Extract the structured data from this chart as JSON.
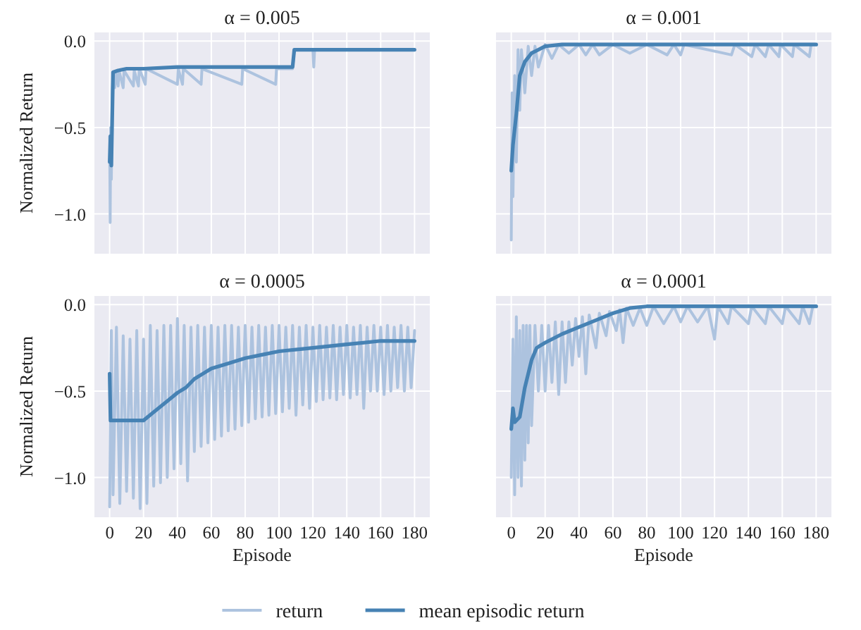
{
  "chart_data": [
    {
      "type": "line",
      "title": "α = 0.005",
      "ylabel": "Normalized Return",
      "xlim": [
        -9,
        189
      ],
      "ylim": [
        -1.23,
        0.05
      ],
      "xticks": [
        0,
        20,
        40,
        60,
        80,
        100,
        120,
        140,
        160,
        180
      ],
      "yticks": [
        {
          "value": -1,
          "label": "−1.0"
        },
        {
          "value": -0.5,
          "label": "−0.5"
        },
        {
          "value": 0,
          "label": "0.0"
        }
      ],
      "grid": true,
      "tick_labels": "y",
      "legend": "bottom",
      "series": [
        {
          "name": "return",
          "color": "#adc3df",
          "x": [
            0,
            0.3,
            0.6,
            1,
            1.5,
            2,
            3,
            3.5,
            5,
            5.5,
            8,
            8.5,
            14,
            14.5,
            17,
            17.5,
            21,
            21.5,
            40,
            40.5,
            43,
            43.5,
            54,
            54.5,
            78,
            78.5,
            98,
            98.5,
            108,
            109,
            120,
            120.5,
            121,
            180
          ],
          "values": [
            -0.55,
            -1.05,
            -0.5,
            -0.8,
            -0.3,
            -0.2,
            -0.27,
            -0.18,
            -0.26,
            -0.17,
            -0.27,
            -0.17,
            -0.26,
            -0.17,
            -0.26,
            -0.16,
            -0.25,
            -0.16,
            -0.25,
            -0.16,
            -0.25,
            -0.16,
            -0.25,
            -0.16,
            -0.25,
            -0.16,
            -0.25,
            -0.16,
            -0.16,
            -0.05,
            -0.05,
            -0.15,
            -0.05,
            -0.05
          ]
        },
        {
          "name": "mean episodic return",
          "color": "#4682b4",
          "x": [
            0,
            0.5,
            1,
            2,
            5,
            10,
            20,
            40,
            108,
            109,
            180
          ],
          "values": [
            -0.7,
            -0.55,
            -0.72,
            -0.18,
            -0.17,
            -0.16,
            -0.16,
            -0.15,
            -0.15,
            -0.05,
            -0.05
          ]
        }
      ]
    },
    {
      "type": "line",
      "title": "α = 0.001",
      "xlim": [
        -9,
        189
      ],
      "ylim": [
        -1.23,
        0.05
      ],
      "xticks": [
        0,
        20,
        40,
        60,
        80,
        100,
        120,
        140,
        160,
        180
      ],
      "yticks": [
        -1,
        -0.5,
        0
      ],
      "grid": true,
      "tick_labels": false,
      "series": [
        {
          "color": "#adc3df",
          "x": [
            0,
            0.5,
            1,
            2,
            3,
            4,
            5,
            6,
            8,
            10,
            12,
            14,
            16,
            20,
            24,
            28,
            34,
            40,
            44,
            48,
            52,
            60,
            70,
            80,
            92,
            96,
            100,
            102,
            130,
            132,
            142,
            144,
            150,
            152,
            158,
            159,
            166,
            167,
            176,
            177,
            180
          ],
          "values": [
            -1.15,
            -0.3,
            -0.9,
            -0.2,
            -0.7,
            -0.05,
            -0.4,
            -0.05,
            -0.3,
            -0.03,
            -0.2,
            -0.03,
            -0.15,
            -0.02,
            -0.1,
            -0.02,
            -0.07,
            -0.02,
            -0.08,
            -0.02,
            -0.08,
            -0.02,
            -0.07,
            -0.02,
            -0.08,
            -0.02,
            -0.08,
            -0.02,
            -0.08,
            -0.02,
            -0.09,
            -0.02,
            -0.09,
            -0.02,
            -0.09,
            -0.02,
            -0.09,
            -0.02,
            -0.09,
            -0.02,
            -0.02
          ]
        },
        {
          "color": "#4682b4",
          "x": [
            0,
            1,
            3,
            5,
            8,
            12,
            20,
            30,
            180
          ],
          "values": [
            -0.75,
            -0.6,
            -0.42,
            -0.2,
            -0.12,
            -0.07,
            -0.03,
            -0.02,
            -0.02
          ]
        }
      ]
    },
    {
      "type": "line",
      "title": "α = 0.0005",
      "xlabel": "Episode",
      "ylabel": "Normalized Return",
      "xlim": [
        -9,
        189
      ],
      "ylim": [
        -1.23,
        0.05
      ],
      "xticks": [
        0,
        20,
        40,
        60,
        80,
        100,
        120,
        140,
        160,
        180
      ],
      "yticks": [
        {
          "value": -1,
          "label": "−1.0"
        },
        {
          "value": -0.5,
          "label": "−0.5"
        },
        {
          "value": 0,
          "label": "0.0"
        }
      ],
      "grid": true,
      "series": [
        {
          "color": "#adc3df",
          "x": [
            0,
            1,
            2,
            4,
            6,
            8,
            10,
            12,
            14,
            16,
            18,
            20,
            22,
            24,
            26,
            28,
            30,
            32,
            34,
            36,
            38,
            40,
            42,
            44,
            46,
            48,
            50,
            52,
            54,
            56,
            58,
            60,
            62,
            64,
            66,
            68,
            70,
            72,
            74,
            76,
            78,
            80,
            82,
            84,
            86,
            88,
            90,
            92,
            94,
            96,
            98,
            100,
            102,
            104,
            106,
            108,
            110,
            112,
            114,
            116,
            118,
            120,
            122,
            124,
            126,
            128,
            130,
            132,
            134,
            136,
            138,
            140,
            142,
            144,
            146,
            148,
            150,
            152,
            154,
            156,
            158,
            160,
            162,
            164,
            166,
            168,
            170,
            172,
            174,
            176,
            178,
            180
          ],
          "values": [
            -1.17,
            -0.15,
            -1.1,
            -0.13,
            -1.15,
            -0.18,
            -1.08,
            -0.2,
            -1.12,
            -0.15,
            -1.18,
            -0.2,
            -1.15,
            -0.12,
            -1.05,
            -0.15,
            -1.03,
            -0.12,
            -1.0,
            -0.12,
            -0.95,
            -0.08,
            -0.92,
            -0.12,
            -1.02,
            -0.13,
            -0.85,
            -0.12,
            -0.82,
            -0.13,
            -0.8,
            -0.12,
            -0.78,
            -0.13,
            -0.76,
            -0.12,
            -0.73,
            -0.12,
            -0.72,
            -0.13,
            -0.7,
            -0.12,
            -0.68,
            -0.13,
            -0.66,
            -0.12,
            -0.65,
            -0.13,
            -0.64,
            -0.12,
            -0.63,
            -0.12,
            -0.62,
            -0.13,
            -0.6,
            -0.12,
            -0.64,
            -0.13,
            -0.58,
            -0.12,
            -0.6,
            -0.13,
            -0.56,
            -0.12,
            -0.55,
            -0.13,
            -0.54,
            -0.12,
            -0.55,
            -0.13,
            -0.52,
            -0.12,
            -0.54,
            -0.13,
            -0.52,
            -0.12,
            -0.6,
            -0.13,
            -0.5,
            -0.12,
            -0.5,
            -0.13,
            -0.52,
            -0.12,
            -0.5,
            -0.13,
            -0.48,
            -0.12,
            -0.5,
            -0.13,
            -0.48,
            -0.15
          ]
        },
        {
          "color": "#4682b4",
          "x": [
            0,
            0.5,
            10,
            20,
            25,
            30,
            35,
            40,
            45,
            50,
            55,
            60,
            70,
            80,
            90,
            100,
            120,
            140,
            160,
            180
          ],
          "values": [
            -0.4,
            -0.67,
            -0.67,
            -0.67,
            -0.63,
            -0.59,
            -0.55,
            -0.51,
            -0.48,
            -0.43,
            -0.4,
            -0.37,
            -0.34,
            -0.31,
            -0.29,
            -0.27,
            -0.25,
            -0.23,
            -0.21,
            -0.21
          ]
        }
      ]
    },
    {
      "type": "line",
      "title": "α = 0.0001",
      "xlabel": "Episode",
      "xlim": [
        -9,
        189
      ],
      "ylim": [
        -1.23,
        0.05
      ],
      "xticks": [
        0,
        20,
        40,
        60,
        80,
        100,
        120,
        140,
        160,
        180
      ],
      "yticks": [
        -1,
        -0.5,
        0
      ],
      "grid": true,
      "tick_labels": "x",
      "series": [
        {
          "color": "#adc3df",
          "x": [
            0,
            1,
            2,
            3,
            4,
            5,
            6,
            7,
            8,
            9,
            10,
            11,
            12,
            14,
            16,
            18,
            20,
            22,
            24,
            26,
            28,
            30,
            32,
            34,
            36,
            38,
            40,
            42,
            44,
            46,
            50,
            52,
            56,
            58,
            62,
            64,
            66,
            68,
            72,
            76,
            80,
            84,
            90,
            96,
            100,
            104,
            110,
            116,
            120,
            122,
            128,
            130,
            140,
            142,
            150,
            152,
            160,
            162,
            170,
            172,
            176,
            178,
            180
          ],
          "values": [
            -1.0,
            -0.2,
            -1.1,
            -0.07,
            -1.0,
            -0.15,
            -1.05,
            -0.12,
            -0.9,
            -0.12,
            -0.8,
            -0.12,
            -0.7,
            -0.12,
            -0.5,
            -0.12,
            -0.5,
            -0.12,
            -0.45,
            -0.1,
            -0.52,
            -0.1,
            -0.45,
            -0.1,
            -0.35,
            -0.08,
            -0.3,
            -0.07,
            -0.4,
            -0.06,
            -0.25,
            -0.05,
            -0.18,
            -0.04,
            -0.15,
            -0.03,
            -0.22,
            -0.02,
            -0.12,
            -0.02,
            -0.12,
            -0.01,
            -0.11,
            -0.01,
            -0.1,
            -0.01,
            -0.1,
            -0.01,
            -0.2,
            -0.01,
            -0.11,
            -0.01,
            -0.11,
            -0.01,
            -0.11,
            -0.01,
            -0.11,
            -0.01,
            -0.11,
            -0.01,
            -0.11,
            -0.01,
            -0.01
          ]
        },
        {
          "color": "#4682b4",
          "x": [
            0,
            1,
            2,
            5,
            8,
            12,
            15,
            20,
            30,
            40,
            50,
            60,
            70,
            80,
            180
          ],
          "values": [
            -0.72,
            -0.6,
            -0.68,
            -0.65,
            -0.48,
            -0.32,
            -0.25,
            -0.22,
            -0.17,
            -0.13,
            -0.09,
            -0.05,
            -0.02,
            -0.01,
            -0.01
          ]
        }
      ]
    }
  ]
}
